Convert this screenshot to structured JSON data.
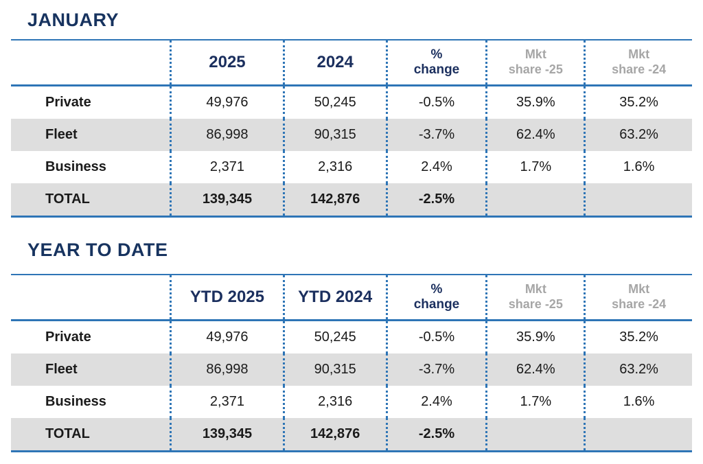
{
  "colors": {
    "heading_navy": "#17335f",
    "header_navy": "#1b2f5e",
    "line_blue": "#2e75b6",
    "shaded_row_gray": "#dedede",
    "muted_header_gray": "#a6a6a6",
    "text": "#1a1a1a"
  },
  "chart_data": [
    {
      "type": "table",
      "title": "JANUARY",
      "columns": [
        "",
        "2025",
        "2024",
        "% change",
        "Mkt share -25",
        "Mkt share -24"
      ],
      "header_display": [
        "2025",
        "2024",
        "%\nchange",
        "Mkt\nshare -25",
        "Mkt\nshare -24"
      ],
      "header_styles": [
        "h-navy-big",
        "h-navy-big",
        "h-navy-small",
        "h-gray-small",
        "h-gray-small"
      ],
      "rows": [
        {
          "label": "Private",
          "values": [
            "49,976",
            "50,245",
            "-0.5%",
            "35.9%",
            "35.2%"
          ],
          "shaded": false,
          "total": false
        },
        {
          "label": "Fleet",
          "values": [
            "86,998",
            "90,315",
            "-3.7%",
            "62.4%",
            "63.2%"
          ],
          "shaded": true,
          "total": false
        },
        {
          "label": "Business",
          "values": [
            "2,371",
            "2,316",
            "2.4%",
            "1.7%",
            "1.6%"
          ],
          "shaded": false,
          "total": false
        },
        {
          "label": "TOTAL",
          "values": [
            "139,345",
            "142,876",
            "-2.5%",
            "",
            ""
          ],
          "shaded": true,
          "total": true
        }
      ]
    },
    {
      "type": "table",
      "title": "YEAR TO DATE",
      "columns": [
        "",
        "YTD 2025",
        "YTD 2024",
        "% change",
        "Mkt share -25",
        "Mkt share -24"
      ],
      "header_display": [
        "YTD 2025",
        "YTD 2024",
        "%\nchange",
        "Mkt\nshare -25",
        "Mkt\nshare -24"
      ],
      "header_styles": [
        "h-navy-big",
        "h-navy-big",
        "h-navy-small",
        "h-gray-small",
        "h-gray-small"
      ],
      "rows": [
        {
          "label": "Private",
          "values": [
            "49,976",
            "50,245",
            "-0.5%",
            "35.9%",
            "35.2%"
          ],
          "shaded": false,
          "total": false
        },
        {
          "label": "Fleet",
          "values": [
            "86,998",
            "90,315",
            "-3.7%",
            "62.4%",
            "63.2%"
          ],
          "shaded": true,
          "total": false
        },
        {
          "label": "Business",
          "values": [
            "2,371",
            "2,316",
            "2.4%",
            "1.7%",
            "1.6%"
          ],
          "shaded": false,
          "total": false
        },
        {
          "label": "TOTAL",
          "values": [
            "139,345",
            "142,876",
            "-2.5%",
            "",
            ""
          ],
          "shaded": true,
          "total": true
        }
      ]
    }
  ]
}
